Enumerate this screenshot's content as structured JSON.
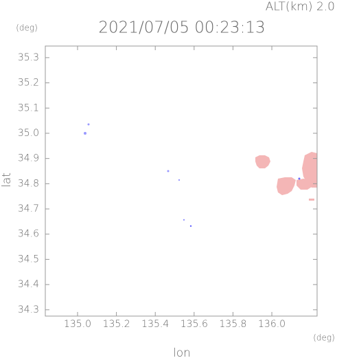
{
  "chart_data": {
    "type": "map",
    "title": "2021/07/05 00:23:13",
    "subtitle": "ALT(km) 2.0",
    "x_label": "lon",
    "y_label": "lat",
    "x_unit": "(deg)",
    "y_unit": "(deg)",
    "xlim": [
      134.834,
      136.233
    ],
    "ylim": [
      34.275,
      35.346
    ],
    "xticks": [
      {
        "value": 135,
        "label": "135.0"
      },
      135.2,
      135.4,
      135.6,
      135.8,
      {
        "value": 136,
        "label": "136.0"
      }
    ],
    "yticks": [
      34.3,
      34.4,
      34.5,
      34.6,
      34.7,
      34.8,
      34.9,
      {
        "value": 35,
        "label": "35.0"
      },
      35.1,
      35.2,
      35.3
    ]
  }
}
